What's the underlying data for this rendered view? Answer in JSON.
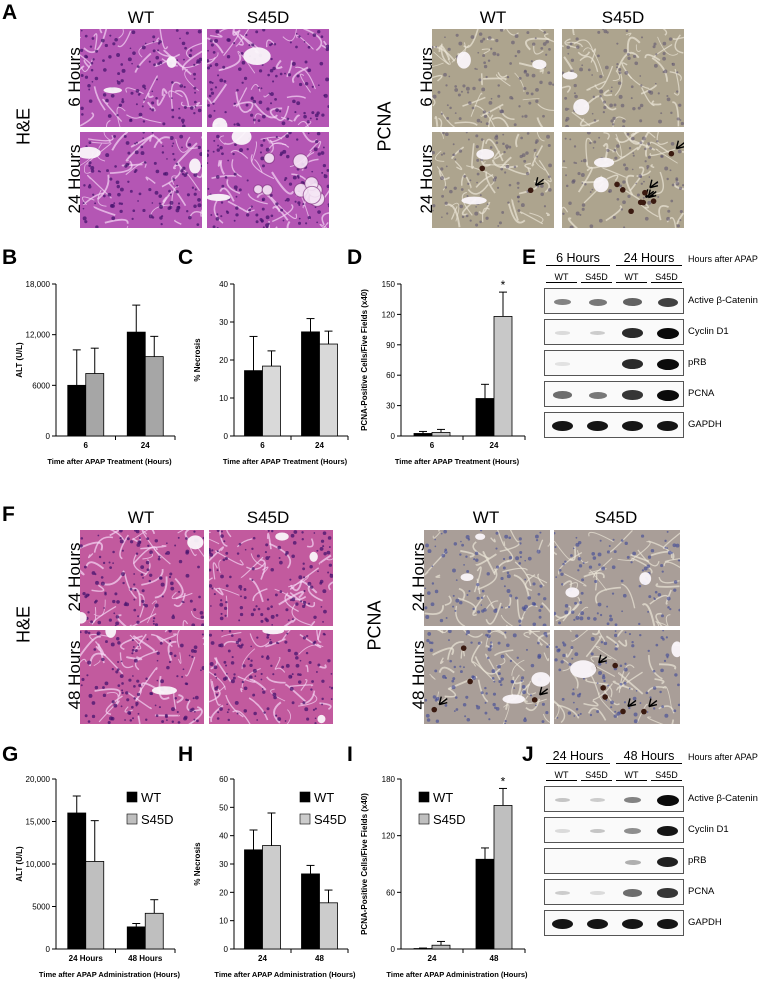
{
  "panels": {
    "A": {
      "letter": "A",
      "he": {
        "stain": "H&E",
        "cols": [
          "WT",
          "S45D"
        ],
        "rows": [
          "6 Hours",
          "24 Hours"
        ]
      },
      "pcna": {
        "stain": "PCNA",
        "cols": [
          "WT",
          "S45D"
        ],
        "rows": [
          "6 Hours",
          "24 Hours"
        ]
      }
    },
    "F": {
      "letter": "F",
      "he": {
        "stain": "H&E",
        "cols": [
          "WT",
          "S45D"
        ],
        "rows": [
          "24 Hours",
          "48 Hours"
        ]
      },
      "pcna": {
        "stain": "PCNA",
        "cols": [
          "WT",
          "S45D"
        ],
        "rows": [
          "24 Hours",
          "48 Hours"
        ]
      }
    },
    "E": {
      "letter": "E",
      "timepoints": [
        "6 Hours",
        "24 Hours"
      ],
      "header_note": "Hours after APAP",
      "lanes": [
        "WT",
        "S45D",
        "WT",
        "S45D"
      ],
      "proteins": [
        "Active β-Catenin",
        "Cyclin D1",
        "pRB",
        "PCNA",
        "GAPDH"
      ],
      "band_intensity": [
        [
          0.45,
          0.5,
          0.6,
          0.75
        ],
        [
          0.05,
          0.12,
          0.85,
          1.0
        ],
        [
          0.02,
          0.0,
          0.85,
          1.0
        ],
        [
          0.55,
          0.5,
          0.8,
          1.0
        ],
        [
          0.95,
          0.95,
          0.95,
          0.95
        ]
      ]
    },
    "J": {
      "letter": "J",
      "timepoints": [
        "24 Hours",
        "48 Hours"
      ],
      "header_note": "Hours after APAP",
      "lanes": [
        "WT",
        "S45D",
        "WT",
        "S45D"
      ],
      "proteins": [
        "Active β-Catenin",
        "Cyclin D1",
        "pRB",
        "PCNA",
        "GAPDH"
      ],
      "band_intensity": [
        [
          0.15,
          0.12,
          0.45,
          1.0
        ],
        [
          0.05,
          0.15,
          0.4,
          0.95
        ],
        [
          0.0,
          0.0,
          0.25,
          0.9
        ],
        [
          0.12,
          0.05,
          0.55,
          0.8
        ],
        [
          0.95,
          0.95,
          0.95,
          0.95
        ]
      ]
    }
  },
  "chart_data": [
    {
      "id": "B",
      "letter": "B",
      "type": "bar",
      "categories": [
        "6",
        "24"
      ],
      "series": [
        {
          "values": [
            6000,
            12300
          ],
          "errors": [
            4200,
            3200
          ],
          "color": "#000000"
        },
        {
          "values": [
            7400,
            9400
          ],
          "errors": [
            3000,
            2400
          ],
          "color": "#a6a6a6"
        }
      ],
      "ylabel": "ALT (U/L)",
      "xlabel": "Time after APAP Treatment (Hours)",
      "ylim": [
        0,
        18000
      ],
      "yticks": [
        0,
        6000,
        12000,
        18000
      ],
      "ytick_labels": [
        "0",
        "6000",
        "12,000",
        "18,000"
      ],
      "legend": []
    },
    {
      "id": "C",
      "letter": "C",
      "type": "bar",
      "categories": [
        "6",
        "24"
      ],
      "series": [
        {
          "values": [
            17.2,
            27.4
          ],
          "errors": [
            9,
            3.5
          ],
          "color": "#000000"
        },
        {
          "values": [
            18.4,
            24.2
          ],
          "errors": [
            4,
            3.4
          ],
          "color": "#d9d9d9"
        }
      ],
      "ylabel": "% Necrosis",
      "xlabel": "Time after APAP Treatment (Hours)",
      "ylim": [
        0,
        40
      ],
      "yticks": [
        0,
        10,
        20,
        30,
        40
      ],
      "ytick_labels": [
        "0",
        "10",
        "20",
        "30",
        "40"
      ],
      "legend": []
    },
    {
      "id": "D",
      "letter": "D",
      "type": "bar",
      "categories": [
        "6",
        "24"
      ],
      "series": [
        {
          "values": [
            2.5,
            37
          ],
          "errors": [
            2,
            14
          ],
          "color": "#000000"
        },
        {
          "values": [
            3.5,
            118
          ],
          "errors": [
            3,
            24
          ],
          "color": "#c8c8c8"
        }
      ],
      "ylabel": "PCNA-Positive Cells/Five Fields (x40)",
      "xlabel": "Time after APAP Treatment (Hours)",
      "ylim": [
        0,
        150
      ],
      "yticks": [
        0,
        30,
        60,
        90,
        120,
        150
      ],
      "ytick_labels": [
        "0",
        "30",
        "60",
        "90",
        "120",
        "150"
      ],
      "annotations": [
        {
          "text": "*",
          "category": 1,
          "series": 1
        }
      ],
      "legend": []
    },
    {
      "id": "G",
      "letter": "G",
      "type": "bar",
      "categories": [
        "24 Hours",
        "48 Hours"
      ],
      "series": [
        {
          "name": "WT",
          "values": [
            16000,
            2600
          ],
          "errors": [
            2000,
            400
          ],
          "color": "#000000"
        },
        {
          "name": "S45D",
          "values": [
            10300,
            4200
          ],
          "errors": [
            4800,
            1600
          ],
          "color": "#bfbfbf"
        }
      ],
      "ylabel": "ALT (U/L)",
      "xlabel": "Time after APAP Administration (Hours)",
      "ylim": [
        0,
        20000
      ],
      "yticks": [
        0,
        5000,
        10000,
        15000,
        20000
      ],
      "ytick_labels": [
        "0",
        "5000",
        "10,000",
        "15,000",
        "20,000"
      ],
      "legend": [
        "WT",
        "S45D"
      ],
      "legend_position": "top-right"
    },
    {
      "id": "H",
      "letter": "H",
      "type": "bar",
      "categories": [
        "24",
        "48"
      ],
      "series": [
        {
          "name": "WT",
          "values": [
            35,
            26.5
          ],
          "errors": [
            7,
            3
          ],
          "color": "#000000"
        },
        {
          "name": "S45D",
          "values": [
            36.5,
            16.3
          ],
          "errors": [
            11.5,
            4.5
          ],
          "color": "#cccccc"
        }
      ],
      "ylabel": "% Necrosis",
      "xlabel": "Time after APAP Administration (Hours)",
      "ylim": [
        0,
        60
      ],
      "yticks": [
        0,
        10,
        20,
        30,
        40,
        50,
        60
      ],
      "ytick_labels": [
        "0",
        "10",
        "20",
        "30",
        "40",
        "50",
        "60"
      ],
      "legend": [
        "WT",
        "S45D"
      ],
      "legend_position": "top-right"
    },
    {
      "id": "I",
      "letter": "I",
      "type": "bar",
      "categories": [
        "24",
        "48"
      ],
      "series": [
        {
          "name": "WT",
          "values": [
            0.5,
            95
          ],
          "errors": [
            0.5,
            12
          ],
          "color": "#000000"
        },
        {
          "name": "S45D",
          "values": [
            4,
            152
          ],
          "errors": [
            4,
            18
          ],
          "color": "#bfbfbf"
        }
      ],
      "ylabel": "PCNA-Positive Cells/Five Fields (x40)",
      "xlabel": "Time after APAP Administration (Hours)",
      "ylim": [
        0,
        180
      ],
      "yticks": [
        0,
        60,
        120,
        180
      ],
      "ytick_labels": [
        "0",
        "60",
        "120",
        "180"
      ],
      "annotations": [
        {
          "text": "*",
          "category": 1,
          "series": 1
        }
      ],
      "legend": [
        "WT",
        "S45D"
      ],
      "legend_position": "top-left"
    }
  ]
}
